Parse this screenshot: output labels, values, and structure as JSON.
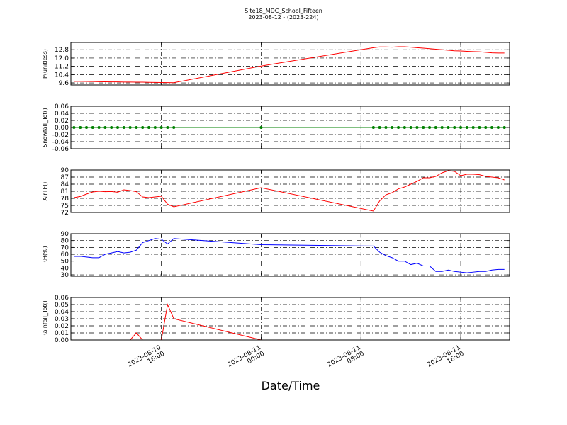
{
  "title": "Site18_MDC_School_Fifteen",
  "subtitle": "2023-08-12 - (2023-224)",
  "x_axis": {
    "label": "Date/Time",
    "xlim": [
      "2023-08-10 08:45",
      "2023-08-11 19:55"
    ],
    "xticks": [
      {
        "value": "2023-08-10 16:00",
        "label": [
          "2023-08-10",
          "16:00"
        ]
      },
      {
        "value": "2023-08-11 00:00",
        "label": [
          "2023-08-11",
          "00:00"
        ]
      },
      {
        "value": "2023-08-11 08:00",
        "label": [
          "2023-08-11",
          "08:00"
        ]
      },
      {
        "value": "2023-08-11 16:00",
        "label": [
          "2023-08-11",
          "16:00"
        ]
      }
    ],
    "x": [
      "2023-08-10 09:00",
      "2023-08-10 09:30",
      "2023-08-10 10:00",
      "2023-08-10 10:30",
      "2023-08-10 11:00",
      "2023-08-10 11:30",
      "2023-08-10 12:00",
      "2023-08-10 12:30",
      "2023-08-10 13:00",
      "2023-08-10 13:30",
      "2023-08-10 14:00",
      "2023-08-10 14:30",
      "2023-08-10 15:00",
      "2023-08-10 15:30",
      "2023-08-10 16:00",
      "2023-08-10 16:30",
      "2023-08-10 17:00",
      "2023-08-11 00:00",
      "2023-08-11 09:00",
      "2023-08-11 09:30",
      "2023-08-11 10:00",
      "2023-08-11 10:30",
      "2023-08-11 11:00",
      "2023-08-11 11:30",
      "2023-08-11 12:00",
      "2023-08-11 12:30",
      "2023-08-11 13:00",
      "2023-08-11 13:30",
      "2023-08-11 14:00",
      "2023-08-11 14:30",
      "2023-08-11 15:00",
      "2023-08-11 15:30",
      "2023-08-11 16:00",
      "2023-08-11 16:30",
      "2023-08-11 17:00",
      "2023-08-11 17:30",
      "2023-08-11 18:00",
      "2023-08-11 18:30",
      "2023-08-11 19:00",
      "2023-08-11 19:30"
    ],
    "grid": true
  },
  "chart_data": [
    {
      "type": "line",
      "ylabel": "P(unitless)",
      "color": "#ff0000",
      "grid": true,
      "ylim": [
        9.4,
        13.5
      ],
      "yticks": [
        9.6,
        10.4,
        11.2,
        {
          "value": 12,
          "label": "12.0"
        },
        12.8
      ],
      "values": [
        9.75,
        9.75,
        9.74,
        9.73,
        9.72,
        9.71,
        9.7,
        9.7,
        9.68,
        9.68,
        9.67,
        9.67,
        9.66,
        9.65,
        9.64,
        9.63,
        9.62,
        11.23,
        13.0,
        13.07,
        13.07,
        13.05,
        13.09,
        13.09,
        13.05,
        13.0,
        12.95,
        12.9,
        12.85,
        12.8,
        12.75,
        12.7,
        12.68,
        12.65,
        12.62,
        12.6,
        12.55,
        12.5,
        12.48,
        12.48
      ]
    },
    {
      "type": "line",
      "ylabel": "Snowfall_Tot()",
      "color": "#008000",
      "markers": true,
      "grid": true,
      "ylim": [
        -0.06,
        0.06
      ],
      "yticks": [
        -0.06,
        -0.04,
        -0.02,
        {
          "value": 0,
          "label": "0.00"
        },
        0.02,
        0.04,
        0.06
      ],
      "values": [
        0,
        0,
        0,
        0,
        0,
        0,
        0,
        0,
        0,
        0,
        0,
        0,
        0,
        0,
        0,
        0,
        0,
        0,
        0,
        0,
        0,
        0,
        0,
        0,
        0,
        0,
        0,
        0,
        0,
        0,
        0,
        0,
        0,
        0,
        0,
        0,
        0,
        0,
        0,
        0
      ]
    },
    {
      "type": "line",
      "ylabel": "AirTF()",
      "color": "#ff0000",
      "grid": true,
      "ylim": [
        72,
        90
      ],
      "yticks": [
        72,
        75,
        78,
        81,
        84,
        87,
        90
      ],
      "values": [
        78.3,
        78.8,
        79.8,
        80.7,
        81.0,
        80.8,
        80.9,
        80.6,
        81.6,
        81.3,
        80.8,
        78.6,
        78.3,
        78.6,
        78.9,
        75.5,
        74.4,
        82.5,
        72.6,
        76.9,
        79.5,
        80.4,
        82.0,
        82.8,
        84.0,
        85.2,
        86.7,
        86.7,
        87.3,
        88.8,
        89.7,
        89.4,
        87.6,
        88.2,
        88.2,
        88.0,
        87.3,
        87.0,
        86.7,
        85.8
      ]
    },
    {
      "type": "line",
      "ylabel": "RH(%)",
      "color": "#0000ff",
      "grid": true,
      "ylim": [
        28,
        90
      ],
      "yticks": [
        30,
        40,
        50,
        60,
        70,
        80,
        90
      ],
      "values": [
        57,
        57,
        56,
        55,
        55,
        60,
        62,
        64,
        62,
        63,
        66,
        77,
        80,
        83,
        82,
        75,
        83,
        74,
        72,
        63,
        58,
        55,
        50,
        50,
        45,
        47,
        43,
        43,
        35,
        35,
        37,
        35,
        34,
        33,
        34,
        35,
        35,
        37,
        38,
        38
      ]
    },
    {
      "type": "line",
      "ylabel": "Rainfall_Tot()",
      "color": "#ff0000",
      "grid": true,
      "ylim": [
        0,
        0.06
      ],
      "yticks": [
        {
          "value": 0,
          "label": "0.00"
        },
        0.01,
        0.02,
        0.03,
        0.04,
        0.05,
        0.06
      ],
      "values": [
        0,
        0,
        0,
        0,
        0,
        0,
        0,
        0,
        0,
        0,
        0.01,
        0,
        0,
        0,
        0,
        0.05,
        0.03,
        0,
        0,
        0,
        0,
        0,
        0,
        0,
        0,
        0,
        0,
        0,
        0,
        0,
        0,
        0,
        0,
        0,
        0,
        0,
        0,
        0,
        0,
        0
      ]
    }
  ]
}
